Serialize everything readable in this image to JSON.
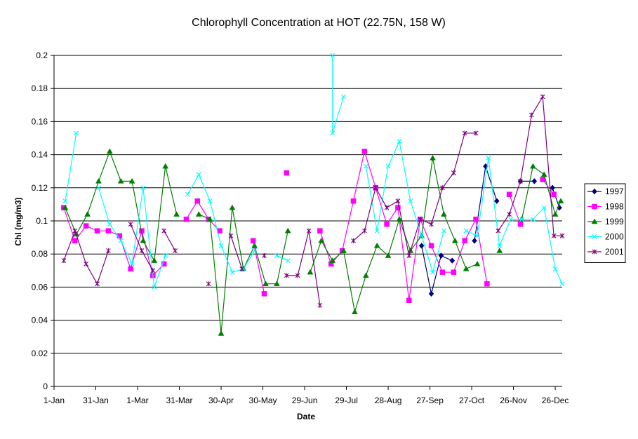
{
  "chart_data": {
    "type": "line",
    "title": "Chlorophyll Concentration at HOT (22.75N, 158 W)",
    "xlabel": "Date",
    "ylabel": "Chl (mg/m3)",
    "ylim": [
      0,
      0.2
    ],
    "yticks": [
      "0",
      "0.02",
      "0.04",
      "0.06",
      "0.08",
      "0.1",
      "0.12",
      "0.14",
      "0.16",
      "0.18",
      "0.2"
    ],
    "xlim": [
      1,
      366
    ],
    "xtick_days": [
      1,
      31,
      61,
      91,
      121,
      151,
      181,
      211,
      241,
      271,
      301,
      331,
      361
    ],
    "xtick_labels": [
      "1-Jan",
      "31-Jan",
      "1-Mar",
      "31-Mar",
      "30-Apr",
      "30-May",
      "29-Jun",
      "29-Jul",
      "28-Aug",
      "27-Sep",
      "27-Oct",
      "26-Nov",
      "26-Dec"
    ],
    "grid": "horizontal",
    "legend_position": "right",
    "series": [
      {
        "name": "1997",
        "color": "#000080",
        "marker": "diamond",
        "segments": [
          [
            [
              265,
              0.085
            ],
            [
              272,
              0.056
            ],
            [
              279,
              0.079
            ],
            [
              287,
              0.076
            ]
          ],
          [
            [
              303,
              0.088
            ],
            [
              311,
              0.133
            ],
            [
              319,
              0.112
            ]
          ],
          [
            [
              336,
              0.124
            ],
            [
              346,
              0.124
            ]
          ],
          [
            [
              359,
              0.12
            ],
            [
              364,
              0.108
            ]
          ]
        ]
      },
      {
        "name": "1998",
        "color": "#FF00FF",
        "marker": "square",
        "segments": [
          [
            [
              8,
              0.108
            ],
            [
              16,
              0.088
            ],
            [
              24,
              0.097
            ],
            [
              32,
              0.094
            ],
            [
              40,
              0.094
            ],
            [
              48,
              0.091
            ],
            [
              56,
              0.071
            ],
            [
              64,
              0.094
            ],
            [
              72,
              0.067
            ],
            [
              80,
              0.074
            ]
          ],
          [
            [
              96,
              0.101
            ],
            [
              104,
              0.112
            ],
            [
              112,
              0.101
            ],
            [
              120,
              0.094
            ]
          ],
          [
            [
              144,
              0.088
            ],
            [
              152,
              0.056
            ]
          ],
          [
            [
              168,
              0.129
            ]
          ],
          [
            [
              192,
              0.094
            ],
            [
              200,
              0.074
            ],
            [
              208,
              0.082
            ],
            [
              216,
              0.112
            ],
            [
              224,
              0.142
            ],
            [
              232,
              0.12
            ],
            [
              240,
              0.098
            ],
            [
              248,
              0.108
            ],
            [
              256,
              0.052
            ],
            [
              264,
              0.101
            ],
            [
              272,
              0.085
            ],
            [
              280,
              0.069
            ],
            [
              288,
              0.069
            ],
            [
              296,
              0.088
            ],
            [
              304,
              0.101
            ],
            [
              312,
              0.062
            ]
          ],
          [
            [
              328,
              0.116
            ],
            [
              336,
              0.098
            ]
          ],
          [
            [
              352,
              0.125
            ],
            [
              360,
              0.116
            ]
          ]
        ]
      },
      {
        "name": "1999",
        "color": "#008000",
        "marker": "triangle",
        "segments": [
          [
            [
              9,
              0.108
            ],
            [
              17,
              0.092
            ],
            [
              25,
              0.104
            ],
            [
              33,
              0.124
            ],
            [
              41,
              0.142
            ],
            [
              49,
              0.124
            ],
            [
              57,
              0.124
            ],
            [
              65,
              0.088
            ],
            [
              73,
              0.076
            ],
            [
              81,
              0.133
            ],
            [
              89,
              0.104
            ]
          ],
          [
            [
              105,
              0.104
            ],
            [
              113,
              0.101
            ],
            [
              121,
              0.032
            ],
            [
              129,
              0.108
            ],
            [
              137,
              0.071
            ],
            [
              145,
              0.085
            ],
            [
              153,
              0.062
            ],
            [
              161,
              0.062
            ],
            [
              169,
              0.094
            ]
          ],
          [
            [
              185,
              0.069
            ],
            [
              193,
              0.088
            ],
            [
              201,
              0.076
            ],
            [
              209,
              0.082
            ],
            [
              217,
              0.045
            ],
            [
              225,
              0.067
            ],
            [
              233,
              0.085
            ],
            [
              241,
              0.079
            ],
            [
              249,
              0.101
            ],
            [
              257,
              0.082
            ],
            [
              265,
              0.091
            ],
            [
              273,
              0.138
            ],
            [
              281,
              0.104
            ],
            [
              289,
              0.088
            ],
            [
              297,
              0.071
            ],
            [
              305,
              0.074
            ]
          ],
          [
            [
              321,
              0.082
            ]
          ],
          [
            [
              337,
              0.101
            ],
            [
              345,
              0.133
            ],
            [
              353,
              0.128
            ],
            [
              361,
              0.104
            ],
            [
              365,
              0.112
            ]
          ]
        ]
      },
      {
        "name": "2000",
        "color": "#00FFFF",
        "marker": "x",
        "segments": [
          [
            [
              9,
              0.112
            ],
            [
              17,
              0.153
            ]
          ],
          [
            [
              33,
              0.12
            ],
            [
              41,
              0.098
            ],
            [
              49,
              0.088
            ],
            [
              57,
              0.074
            ],
            [
              65,
              0.12
            ],
            [
              73,
              0.06
            ],
            [
              81,
              0.079
            ]
          ],
          [
            [
              97,
              0.116
            ],
            [
              105,
              0.128
            ],
            [
              113,
              0.112
            ],
            [
              121,
              0.085
            ],
            [
              129,
              0.069
            ],
            [
              137,
              0.071
            ],
            [
              145,
              0.082
            ]
          ],
          [
            [
              161,
              0.079
            ],
            [
              169,
              0.076
            ]
          ],
          [
            [
              201,
              0.2
            ],
            [
              201,
              0.153
            ],
            [
              209,
              0.175
            ]
          ],
          [
            [
              225,
              0.133
            ],
            [
              233,
              0.094
            ],
            [
              241,
              0.133
            ],
            [
              249,
              0.148
            ],
            [
              257,
              0.112
            ],
            [
              265,
              0.091
            ],
            [
              273,
              0.069
            ],
            [
              281,
              0.094
            ]
          ],
          [
            [
              297,
              0.094
            ],
            [
              305,
              0.091
            ],
            [
              313,
              0.138
            ],
            [
              321,
              0.085
            ],
            [
              329,
              0.101
            ],
            [
              337,
              0.101
            ],
            [
              345,
              0.101
            ],
            [
              353,
              0.108
            ],
            [
              361,
              0.071
            ],
            [
              366,
              0.062
            ]
          ]
        ]
      },
      {
        "name": "2001",
        "color": "#800080",
        "marker": "star",
        "segments": [
          [
            [
              8,
              0.076
            ],
            [
              16,
              0.094
            ],
            [
              24,
              0.074
            ],
            [
              32,
              0.062
            ],
            [
              40,
              0.082
            ]
          ],
          [
            [
              56,
              0.098
            ],
            [
              64,
              0.082
            ],
            [
              72,
              0.07
            ]
          ],
          [
            [
              80,
              0.094
            ],
            [
              88,
              0.082
            ]
          ],
          [
            [
              112,
              0.062
            ]
          ],
          [
            [
              128,
              0.091
            ],
            [
              136,
              0.071
            ]
          ],
          [
            [
              152,
              0.079
            ]
          ],
          [
            [
              168,
              0.067
            ],
            [
              176,
              0.067
            ],
            [
              184,
              0.094
            ],
            [
              192,
              0.049
            ]
          ],
          [
            [
              216,
              0.088
            ],
            [
              224,
              0.094
            ],
            [
              232,
              0.12
            ],
            [
              240,
              0.108
            ],
            [
              248,
              0.112
            ],
            [
              256,
              0.079
            ],
            [
              264,
              0.101
            ],
            [
              272,
              0.098
            ],
            [
              280,
              0.12
            ],
            [
              288,
              0.129
            ],
            [
              296,
              0.153
            ],
            [
              304,
              0.153
            ]
          ],
          [
            [
              320,
              0.094
            ],
            [
              328,
              0.104
            ],
            [
              336,
              0.124
            ],
            [
              344,
              0.164
            ],
            [
              352,
              0.175
            ],
            [
              360,
              0.091
            ],
            [
              366,
              0.091
            ]
          ]
        ]
      }
    ]
  }
}
